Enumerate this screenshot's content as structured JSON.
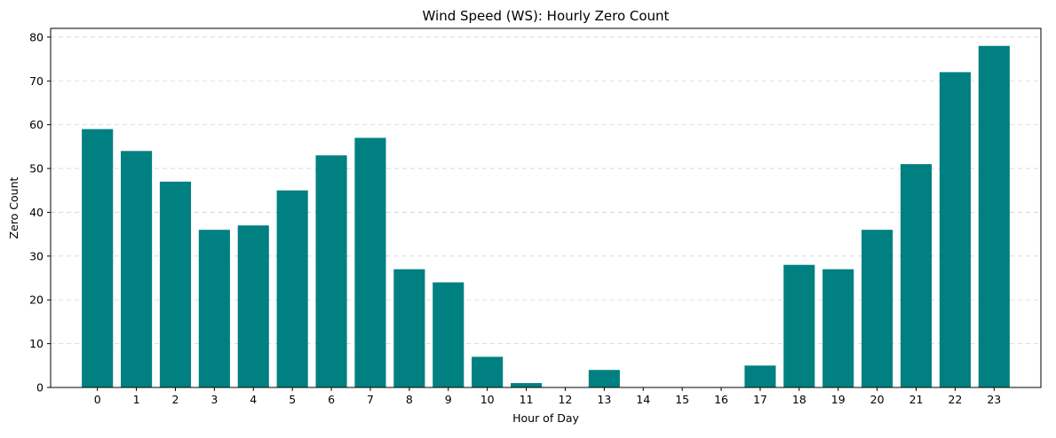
{
  "chart_data": {
    "type": "bar",
    "title": "Wind Speed (WS): Hourly Zero Count",
    "xlabel": "Hour of Day",
    "ylabel": "Zero Count",
    "categories": [
      "0",
      "1",
      "2",
      "3",
      "4",
      "5",
      "6",
      "7",
      "8",
      "9",
      "10",
      "11",
      "12",
      "13",
      "14",
      "15",
      "16",
      "17",
      "18",
      "19",
      "20",
      "21",
      "22",
      "23"
    ],
    "values": [
      59,
      54,
      47,
      36,
      37,
      45,
      53,
      57,
      27,
      24,
      7,
      1,
      0,
      4,
      0,
      0,
      0,
      5,
      28,
      27,
      36,
      51,
      72,
      78
    ],
    "ylim": [
      0,
      82
    ],
    "yticks": [
      0,
      10,
      20,
      30,
      40,
      50,
      60,
      70,
      80
    ],
    "grid": "y-dashed",
    "legend": "none",
    "bar_color": "#008080",
    "grid_color": "#d3d3d3"
  }
}
